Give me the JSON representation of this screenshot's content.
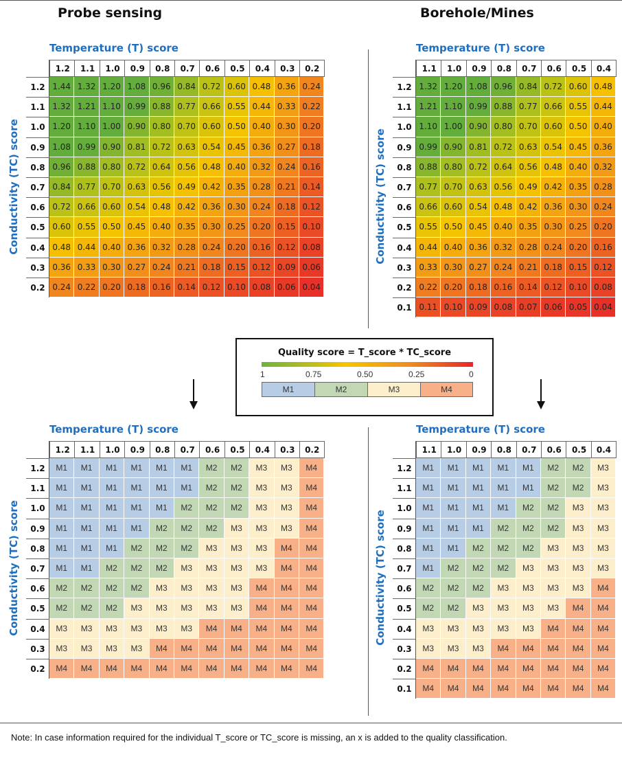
{
  "titles": {
    "left": "Probe sensing",
    "right": "Borehole/Mines"
  },
  "axis_labels": {
    "temperature": "Temperature (T) score",
    "conductivity": "Conductivity (TC) score"
  },
  "legend": {
    "title": "Quality score = T_score * TC_score",
    "ticks": [
      "1",
      "0.75",
      "0.50",
      "0.25",
      "0"
    ],
    "classes": [
      "M1",
      "M2",
      "M3",
      "M4"
    ]
  },
  "note": "Note: In case information required for the individual T_score or TC_score is missing, an x is added to the quality classification.",
  "colors": {
    "M1": "#b7cde6",
    "M2": "#c2d8b4",
    "M3": "#fdefcc",
    "M4": "#f8b088",
    "gradient": [
      "#6cb33f",
      "#f6c400",
      "#f28c1e",
      "#e8262b"
    ],
    "label_blue": "#1f6fc1"
  },
  "chart_data": [
    {
      "type": "heatmap",
      "title": "Probe sensing",
      "xlabel": "Temperature (T) score",
      "ylabel": "Conductivity (TC) score",
      "x": [
        "1.2",
        "1.1",
        "1.0",
        "0.9",
        "0.8",
        "0.7",
        "0.6",
        "0.5",
        "0.4",
        "0.3",
        "0.2"
      ],
      "y": [
        "1.2",
        "1.1",
        "1.0",
        "0.9",
        "0.8",
        "0.7",
        "0.6",
        "0.5",
        "0.4",
        "0.3",
        "0.2"
      ],
      "values": [
        [
          "1.44",
          "1.32",
          "1.20",
          "1.08",
          "0.96",
          "0.84",
          "0.72",
          "0.60",
          "0.48",
          "0.36",
          "0.24"
        ],
        [
          "1.32",
          "1.21",
          "1.10",
          "0.99",
          "0.88",
          "0.77",
          "0.66",
          "0.55",
          "0.44",
          "0.33",
          "0.22"
        ],
        [
          "1.20",
          "1.10",
          "1.00",
          "0.90",
          "0.80",
          "0.70",
          "0.60",
          "0.50",
          "0.40",
          "0.30",
          "0.20"
        ],
        [
          "1.08",
          "0.99",
          "0.90",
          "0.81",
          "0.72",
          "0.63",
          "0.54",
          "0.45",
          "0.36",
          "0.27",
          "0.18"
        ],
        [
          "0.96",
          "0.88",
          "0.80",
          "0.72",
          "0.64",
          "0.56",
          "0.48",
          "0.40",
          "0.32",
          "0.24",
          "0.16"
        ],
        [
          "0.84",
          "0.77",
          "0.70",
          "0.63",
          "0.56",
          "0.49",
          "0.42",
          "0.35",
          "0.28",
          "0.21",
          "0.14"
        ],
        [
          "0.72",
          "0.66",
          "0.60",
          "0.54",
          "0.48",
          "0.42",
          "0.36",
          "0.30",
          "0.24",
          "0.18",
          "0.12"
        ],
        [
          "0.60",
          "0.55",
          "0.50",
          "0.45",
          "0.40",
          "0.35",
          "0.30",
          "0.25",
          "0.20",
          "0.15",
          "0.10"
        ],
        [
          "0.48",
          "0.44",
          "0.40",
          "0.36",
          "0.32",
          "0.28",
          "0.24",
          "0.20",
          "0.16",
          "0.12",
          "0.08"
        ],
        [
          "0.36",
          "0.33",
          "0.30",
          "0.27",
          "0.24",
          "0.21",
          "0.18",
          "0.15",
          "0.12",
          "0.09",
          "0.06"
        ],
        [
          "0.24",
          "0.22",
          "0.20",
          "0.18",
          "0.16",
          "0.14",
          "0.12",
          "0.10",
          "0.08",
          "0.06",
          "0.04"
        ]
      ]
    },
    {
      "type": "heatmap",
      "title": "Borehole/Mines",
      "xlabel": "Temperature (T) score",
      "ylabel": "Conductivity (TC) score",
      "x": [
        "1.1",
        "1.0",
        "0.9",
        "0.8",
        "0.7",
        "0.6",
        "0.5",
        "0.4"
      ],
      "y": [
        "1.2",
        "1.1",
        "1.0",
        "0.9",
        "0.8",
        "0.7",
        "0.6",
        "0.5",
        "0.4",
        "0.3",
        "0.2",
        "0.1"
      ],
      "values": [
        [
          "1.32",
          "1.20",
          "1.08",
          "0.96",
          "0.84",
          "0.72",
          "0.60",
          "0.48"
        ],
        [
          "1.21",
          "1.10",
          "0.99",
          "0.88",
          "0.77",
          "0.66",
          "0.55",
          "0.44"
        ],
        [
          "1.10",
          "1.00",
          "0.90",
          "0.80",
          "0.70",
          "0.60",
          "0.50",
          "0.40"
        ],
        [
          "0.99",
          "0.90",
          "0.81",
          "0.72",
          "0.63",
          "0.54",
          "0.45",
          "0.36"
        ],
        [
          "0.88",
          "0.80",
          "0.72",
          "0.64",
          "0.56",
          "0.48",
          "0.40",
          "0.32"
        ],
        [
          "0.77",
          "0.70",
          "0.63",
          "0.56",
          "0.49",
          "0.42",
          "0.35",
          "0.28"
        ],
        [
          "0.66",
          "0.60",
          "0.54",
          "0.48",
          "0.42",
          "0.36",
          "0.30",
          "0.24"
        ],
        [
          "0.55",
          "0.50",
          "0.45",
          "0.40",
          "0.35",
          "0.30",
          "0.25",
          "0.20"
        ],
        [
          "0.44",
          "0.40",
          "0.36",
          "0.32",
          "0.28",
          "0.24",
          "0.20",
          "0.16"
        ],
        [
          "0.33",
          "0.30",
          "0.27",
          "0.24",
          "0.21",
          "0.18",
          "0.15",
          "0.12"
        ],
        [
          "0.22",
          "0.20",
          "0.18",
          "0.16",
          "0.14",
          "0.12",
          "0.10",
          "0.08"
        ],
        [
          "0.11",
          "0.10",
          "0.09",
          "0.08",
          "0.07",
          "0.06",
          "0.05",
          "0.04"
        ]
      ]
    },
    {
      "type": "table",
      "xlabel": "Temperature (T) score",
      "ylabel": "Conductivity (TC) score",
      "x": [
        "1.2",
        "1.1",
        "1.0",
        "0.9",
        "0.8",
        "0.7",
        "0.6",
        "0.5",
        "0.4",
        "0.3",
        "0.2"
      ],
      "y": [
        "1.2",
        "1.1",
        "1.0",
        "0.9",
        "0.8",
        "0.7",
        "0.6",
        "0.5",
        "0.4",
        "0.3",
        "0.2"
      ],
      "values": [
        [
          "M1",
          "M1",
          "M1",
          "M1",
          "M1",
          "M1",
          "M2",
          "M2",
          "M3",
          "M3",
          "M4"
        ],
        [
          "M1",
          "M1",
          "M1",
          "M1",
          "M1",
          "M1",
          "M2",
          "M2",
          "M3",
          "M3",
          "M4"
        ],
        [
          "M1",
          "M1",
          "M1",
          "M1",
          "M1",
          "M2",
          "M2",
          "M2",
          "M3",
          "M3",
          "M4"
        ],
        [
          "M1",
          "M1",
          "M1",
          "M1",
          "M2",
          "M2",
          "M2",
          "M3",
          "M3",
          "M3",
          "M4"
        ],
        [
          "M1",
          "M1",
          "M1",
          "M2",
          "M2",
          "M2",
          "M3",
          "M3",
          "M3",
          "M4",
          "M4"
        ],
        [
          "M1",
          "M1",
          "M2",
          "M2",
          "M2",
          "M3",
          "M3",
          "M3",
          "M3",
          "M4",
          "M4"
        ],
        [
          "M2",
          "M2",
          "M2",
          "M2",
          "M3",
          "M3",
          "M3",
          "M3",
          "M4",
          "M4",
          "M4"
        ],
        [
          "M2",
          "M2",
          "M2",
          "M3",
          "M3",
          "M3",
          "M3",
          "M3",
          "M4",
          "M4",
          "M4"
        ],
        [
          "M3",
          "M3",
          "M3",
          "M3",
          "M3",
          "M3",
          "M4",
          "M4",
          "M4",
          "M4",
          "M4"
        ],
        [
          "M3",
          "M3",
          "M3",
          "M3",
          "M4",
          "M4",
          "M4",
          "M4",
          "M4",
          "M4",
          "M4"
        ],
        [
          "M4",
          "M4",
          "M4",
          "M4",
          "M4",
          "M4",
          "M4",
          "M4",
          "M4",
          "M4",
          "M4"
        ]
      ]
    },
    {
      "type": "table",
      "xlabel": "Temperature (T) score",
      "ylabel": "Conductivity (TC) score",
      "x": [
        "1.1",
        "1.0",
        "0.9",
        "0.8",
        "0.7",
        "0.6",
        "0.5",
        "0.4"
      ],
      "y": [
        "1.2",
        "1.1",
        "1.0",
        "0.9",
        "0.8",
        "0.7",
        "0.6",
        "0.5",
        "0.4",
        "0.3",
        "0.2",
        "0.1"
      ],
      "values": [
        [
          "M1",
          "M1",
          "M1",
          "M1",
          "M1",
          "M2",
          "M2",
          "M3"
        ],
        [
          "M1",
          "M1",
          "M1",
          "M1",
          "M1",
          "M2",
          "M2",
          "M3"
        ],
        [
          "M1",
          "M1",
          "M1",
          "M1",
          "M2",
          "M2",
          "M3",
          "M3"
        ],
        [
          "M1",
          "M1",
          "M1",
          "M2",
          "M2",
          "M2",
          "M3",
          "M3"
        ],
        [
          "M1",
          "M1",
          "M2",
          "M2",
          "M2",
          "M3",
          "M3",
          "M3"
        ],
        [
          "M1",
          "M2",
          "M2",
          "M2",
          "M3",
          "M3",
          "M3",
          "M3"
        ],
        [
          "M2",
          "M2",
          "M2",
          "M3",
          "M3",
          "M3",
          "M3",
          "M4"
        ],
        [
          "M2",
          "M2",
          "M3",
          "M3",
          "M3",
          "M3",
          "M4",
          "M4"
        ],
        [
          "M3",
          "M3",
          "M3",
          "M3",
          "M3",
          "M4",
          "M4",
          "M4"
        ],
        [
          "M3",
          "M3",
          "M3",
          "M4",
          "M4",
          "M4",
          "M4",
          "M4"
        ],
        [
          "M4",
          "M4",
          "M4",
          "M4",
          "M4",
          "M4",
          "M4",
          "M4"
        ],
        [
          "M4",
          "M4",
          "M4",
          "M4",
          "M4",
          "M4",
          "M4",
          "M4"
        ]
      ]
    }
  ]
}
